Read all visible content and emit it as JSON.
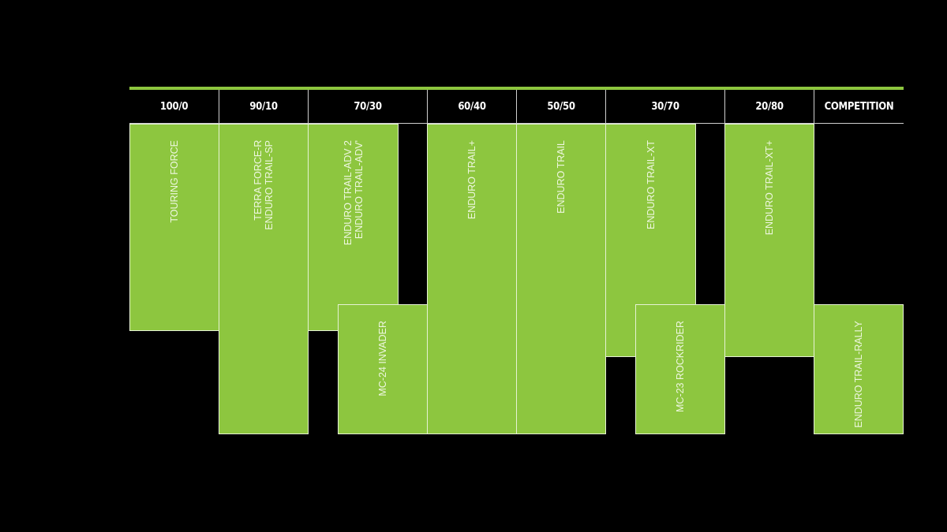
{
  "colors": {
    "accent": "#8dc63f",
    "background": "#000000"
  },
  "headers": [
    "100/0",
    "90/10",
    "70/30",
    "60/40",
    "50/50",
    "30/70",
    "20/80",
    "COMPETITION"
  ],
  "products": [
    {
      "name": "TOURING FORCE",
      "column": "100/0",
      "tier": "upper"
    },
    {
      "name": "TERRA FORCE-R\nENDURO TRAIL-SP",
      "column": "90/10",
      "tier": "full"
    },
    {
      "name": "ENDURO TRAIL-ADV 2\nENDURO TRAIL-ADV'",
      "column": "70/30",
      "tier": "upper"
    },
    {
      "name": "MC-24 INVADER",
      "column": "70/30",
      "tier": "lower"
    },
    {
      "name": "ENDURO TRAIL+",
      "column": "60/40",
      "tier": "full"
    },
    {
      "name": "ENDURO TRAIL",
      "column": "50/50",
      "tier": "full"
    },
    {
      "name": "ENDURO TRAIL-XT",
      "column": "30/70",
      "tier": "upper"
    },
    {
      "name": "MC-23 ROCKRIDER",
      "column": "30/70",
      "tier": "lower"
    },
    {
      "name": "ENDURO TRAIL-XT+",
      "column": "20/80",
      "tier": "upper"
    },
    {
      "name": "ENDURO TRAIL-RALLY",
      "column": "COMPETITION",
      "tier": "lower"
    }
  ]
}
